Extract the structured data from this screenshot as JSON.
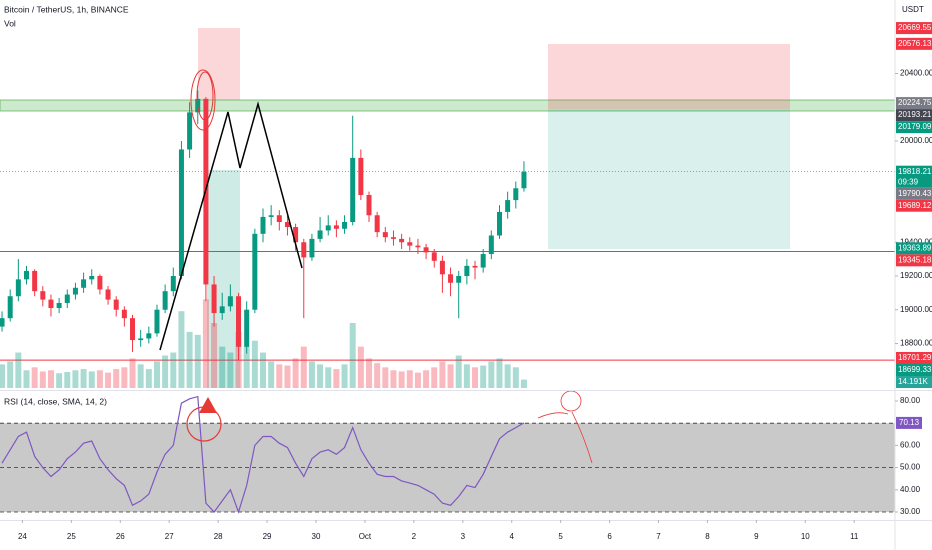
{
  "chart_data": {
    "type": "candlestick",
    "title": "Bitcoin / TetherUS, 1h, BINANCE",
    "volume_title": "Vol",
    "currency": "USDT",
    "up_color": "#089981",
    "down_color": "#f23645",
    "xlim": [
      -11,
      428
    ],
    "xticks": [
      {
        "value": 0,
        "label": "24"
      },
      {
        "value": 24,
        "label": "25"
      },
      {
        "value": 48,
        "label": "26"
      },
      {
        "value": 72,
        "label": "27"
      },
      {
        "value": 96,
        "label": "28"
      },
      {
        "value": 120,
        "label": "29"
      },
      {
        "value": 144,
        "label": "30"
      },
      {
        "value": 168,
        "label": "Oct"
      },
      {
        "value": 192,
        "label": "2"
      },
      {
        "value": 216,
        "label": "3"
      },
      {
        "value": 240,
        "label": "4"
      },
      {
        "value": 264,
        "label": "5"
      },
      {
        "value": 288,
        "label": "6"
      },
      {
        "value": 312,
        "label": "7"
      },
      {
        "value": 336,
        "label": "8"
      },
      {
        "value": 360,
        "label": "9"
      },
      {
        "value": 384,
        "label": "10"
      },
      {
        "value": 408,
        "label": "11"
      }
    ],
    "ylim": [
      18536,
      20836
    ],
    "yticks": [
      {
        "value": 20400,
        "label": "20400.00"
      },
      {
        "value": 20000,
        "label": "20000.00"
      },
      {
        "value": 19400,
        "label": "19400.00"
      },
      {
        "value": 19200,
        "label": "19200.00"
      },
      {
        "value": 19000,
        "label": "19000.00"
      },
      {
        "value": 18800,
        "label": "18800.00"
      }
    ],
    "x": [
      -10,
      -6,
      -2,
      2,
      6,
      10,
      14,
      18,
      22,
      26,
      30,
      34,
      38,
      42,
      46,
      50,
      54,
      58,
      62,
      66,
      70,
      74,
      78,
      82,
      86,
      90,
      94,
      98,
      102,
      106,
      110,
      114,
      118,
      122,
      126,
      130,
      134,
      138,
      142,
      146,
      150,
      154,
      158,
      162,
      166,
      170,
      174,
      178,
      182,
      186,
      190,
      194,
      198,
      202,
      206,
      210,
      214,
      218,
      222,
      226,
      230,
      234,
      238,
      242,
      246
    ],
    "candles": [
      [
        18900,
        18990,
        18870,
        18950
      ],
      [
        18950,
        19120,
        18930,
        19080
      ],
      [
        19080,
        19300,
        19050,
        19180
      ],
      [
        19180,
        19260,
        19150,
        19230
      ],
      [
        19230,
        19240,
        19080,
        19110
      ],
      [
        19110,
        19140,
        19020,
        19060
      ],
      [
        19060,
        19090,
        18960,
        19010
      ],
      [
        19010,
        19070,
        18980,
        19040
      ],
      [
        19040,
        19120,
        19010,
        19090
      ],
      [
        19090,
        19160,
        19060,
        19130
      ],
      [
        19130,
        19220,
        19100,
        19180
      ],
      [
        19180,
        19240,
        19150,
        19200
      ],
      [
        19200,
        19210,
        19090,
        19120
      ],
      [
        19120,
        19140,
        19030,
        19060
      ],
      [
        19060,
        19080,
        18960,
        19000
      ],
      [
        19000,
        19020,
        18900,
        18950
      ],
      [
        18950,
        18970,
        18750,
        18820
      ],
      [
        18820,
        18880,
        18780,
        18830
      ],
      [
        18830,
        18900,
        18800,
        18860
      ],
      [
        18860,
        19030,
        18840,
        19000
      ],
      [
        19000,
        19150,
        18980,
        19110
      ],
      [
        19110,
        19250,
        19080,
        19200
      ],
      [
        19200,
        20000,
        19180,
        19950
      ],
      [
        19950,
        20230,
        19900,
        20170
      ],
      [
        20170,
        20300,
        20100,
        20250
      ],
      [
        20250,
        20260,
        19050,
        19150
      ],
      [
        19150,
        19200,
        18900,
        18980
      ],
      [
        18980,
        19100,
        18940,
        19020
      ],
      [
        19020,
        19150,
        18990,
        19080
      ],
      [
        19080,
        19100,
        18700,
        18780
      ],
      [
        18780,
        19050,
        18740,
        19000
      ],
      [
        19000,
        19480,
        18980,
        19450
      ],
      [
        19450,
        19600,
        19400,
        19550
      ],
      [
        19550,
        19620,
        19500,
        19560
      ],
      [
        19560,
        19590,
        19470,
        19520
      ],
      [
        19520,
        19560,
        19440,
        19490
      ],
      [
        19490,
        19510,
        19350,
        19400
      ],
      [
        19400,
        19420,
        18950,
        19310
      ],
      [
        19310,
        19450,
        19290,
        19420
      ],
      [
        19420,
        19550,
        19400,
        19470
      ],
      [
        19470,
        19560,
        19440,
        19500
      ],
      [
        19500,
        19530,
        19430,
        19480
      ],
      [
        19480,
        19560,
        19450,
        19520
      ],
      [
        19520,
        20150,
        19500,
        19900
      ],
      [
        19900,
        19950,
        19650,
        19680
      ],
      [
        19680,
        19700,
        19520,
        19560
      ],
      [
        19560,
        19580,
        19430,
        19460
      ],
      [
        19460,
        19490,
        19400,
        19430
      ],
      [
        19430,
        19470,
        19380,
        19420
      ],
      [
        19420,
        19450,
        19360,
        19400
      ],
      [
        19400,
        19430,
        19350,
        19380
      ],
      [
        19380,
        19420,
        19330,
        19370
      ],
      [
        19370,
        19390,
        19300,
        19340
      ],
      [
        19340,
        19360,
        19250,
        19290
      ],
      [
        19290,
        19320,
        19100,
        19210
      ],
      [
        19210,
        19250,
        19080,
        19160
      ],
      [
        19160,
        19230,
        18950,
        19200
      ],
      [
        19200,
        19300,
        19150,
        19260
      ],
      [
        19260,
        19290,
        19180,
        19250
      ],
      [
        19250,
        19360,
        19220,
        19330
      ],
      [
        19330,
        19470,
        19300,
        19440
      ],
      [
        19440,
        19620,
        19420,
        19580
      ],
      [
        19580,
        19700,
        19540,
        19650
      ],
      [
        19650,
        19760,
        19600,
        19720
      ],
      [
        19720,
        19880,
        19700,
        19818.21
      ]
    ],
    "countdown": "09:39",
    "volume": {
      "values": [
        40000,
        45000,
        60000,
        30000,
        35000,
        28000,
        30000,
        25000,
        27000,
        30000,
        32000,
        28000,
        30000,
        26000,
        32000,
        35000,
        50000,
        40000,
        32000,
        45000,
        55000,
        60000,
        130000,
        95000,
        90000,
        150000,
        110000,
        70000,
        60000,
        95000,
        70000,
        80000,
        60000,
        45000,
        40000,
        38000,
        50000,
        70000,
        45000,
        40000,
        35000,
        32000,
        40000,
        110000,
        70000,
        50000,
        42000,
        35000,
        30000,
        28000,
        30000,
        26000,
        30000,
        35000,
        45000,
        40000,
        55000,
        40000,
        35000,
        38000,
        45000,
        50000,
        40000,
        35000,
        14191
      ],
      "ylim": [
        0,
        220000
      ],
      "last_label": "14.191K",
      "color": "#26a69a"
    },
    "markers": [
      {
        "value": 20669.55,
        "color": "#f23645"
      },
      {
        "value": 20576.13,
        "color": "#f23645"
      },
      {
        "value": 20224.75,
        "color": "#787b86"
      },
      {
        "value": 20193.21,
        "color": "#434651"
      },
      {
        "value": 20179.09,
        "color": "#089981"
      },
      {
        "value": 19790.43,
        "color": "#787b86"
      },
      {
        "value": 19689.12,
        "color": "#f23645"
      },
      {
        "value": 19363.89,
        "color": "#089981"
      },
      {
        "value": 19345.18,
        "color": "#f23645",
        "line": true
      },
      {
        "value": 18701.29,
        "color": "#f23645",
        "line": true
      },
      {
        "value": 18699.33,
        "color": "#089981"
      }
    ],
    "rsi": {
      "title": "RSI (14, close, SMA, 14, 2)",
      "color": "#7e57c2",
      "values": [
        52,
        58,
        64,
        66,
        55,
        50,
        46,
        49,
        54,
        57,
        61,
        62,
        54,
        49,
        45,
        42,
        33,
        35,
        38,
        48,
        56,
        60,
        79,
        81,
        82,
        34,
        30,
        35,
        40,
        30,
        42,
        60,
        64,
        64,
        61,
        59,
        52,
        46,
        54,
        57,
        58,
        56,
        59,
        68,
        58,
        52,
        47,
        46,
        46,
        44,
        43,
        42,
        40,
        38,
        34,
        33,
        37,
        42,
        41,
        47,
        55,
        63,
        66,
        68,
        70.13
      ],
      "ylim": [
        26.4,
        83.6
      ],
      "yticks": [
        {
          "value": 80,
          "label": "80.00"
        },
        {
          "value": 60,
          "label": "60.00"
        },
        {
          "value": 50,
          "label": "50.00"
        },
        {
          "value": 40,
          "label": "40.00"
        },
        {
          "value": 30,
          "label": "30.00"
        }
      ],
      "band": [
        30,
        70
      ],
      "levels": [
        70,
        50,
        30
      ]
    }
  }
}
